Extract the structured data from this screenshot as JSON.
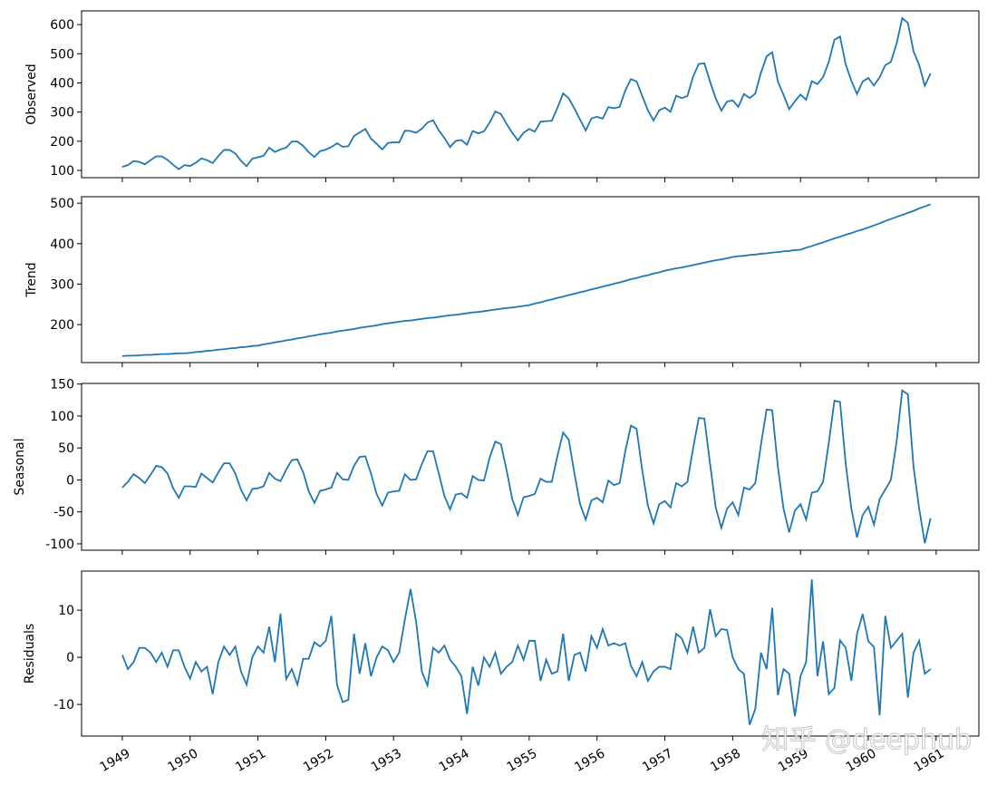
{
  "chart_data": {
    "type": "line",
    "color": "#1f77b4",
    "x": [
      1949,
      1949.083,
      1949.167,
      1949.25,
      1949.333,
      1949.417,
      1949.5,
      1949.583,
      1949.667,
      1949.75,
      1949.833,
      1949.917,
      1950,
      1950.083,
      1950.167,
      1950.25,
      1950.333,
      1950.417,
      1950.5,
      1950.583,
      1950.667,
      1950.75,
      1950.833,
      1950.917,
      1951,
      1951.083,
      1951.167,
      1951.25,
      1951.333,
      1951.417,
      1951.5,
      1951.583,
      1951.667,
      1951.75,
      1951.833,
      1951.917,
      1952,
      1952.083,
      1952.167,
      1952.25,
      1952.333,
      1952.417,
      1952.5,
      1952.583,
      1952.667,
      1952.75,
      1952.833,
      1952.917,
      1953,
      1953.083,
      1953.167,
      1953.25,
      1953.333,
      1953.417,
      1953.5,
      1953.583,
      1953.667,
      1953.75,
      1953.833,
      1953.917,
      1954,
      1954.083,
      1954.167,
      1954.25,
      1954.333,
      1954.417,
      1954.5,
      1954.583,
      1954.667,
      1954.75,
      1954.833,
      1954.917,
      1955,
      1955.083,
      1955.167,
      1955.25,
      1955.333,
      1955.417,
      1955.5,
      1955.583,
      1955.667,
      1955.75,
      1955.833,
      1955.917,
      1956,
      1956.083,
      1956.167,
      1956.25,
      1956.333,
      1956.417,
      1956.5,
      1956.583,
      1956.667,
      1956.75,
      1956.833,
      1956.917,
      1957,
      1957.083,
      1957.167,
      1957.25,
      1957.333,
      1957.417,
      1957.5,
      1957.583,
      1957.667,
      1957.75,
      1957.833,
      1957.917,
      1958,
      1958.083,
      1958.167,
      1958.25,
      1958.333,
      1958.417,
      1958.5,
      1958.583,
      1958.667,
      1958.75,
      1958.833,
      1958.917,
      1959,
      1959.083,
      1959.167,
      1959.25,
      1959.333,
      1959.417,
      1959.5,
      1959.583,
      1959.667,
      1959.75,
      1959.833,
      1959.917,
      1960,
      1960.083,
      1960.167,
      1960.25,
      1960.333,
      1960.417,
      1960.5,
      1960.583,
      1960.667,
      1960.75,
      1960.833,
      1960.917
    ],
    "xlim": [
      1948.4,
      1961.63
    ],
    "xticks": [
      1949,
      1950,
      1951,
      1952,
      1953,
      1954,
      1955,
      1956,
      1957,
      1958,
      1959,
      1960,
      1961
    ],
    "panels": [
      {
        "ylabel": "Observed",
        "ylim": [
          75,
          647
        ],
        "yticks": [
          100,
          200,
          300,
          400,
          500,
          600
        ],
        "values": [
          112,
          118,
          132,
          129,
          121,
          135,
          148,
          148,
          136,
          119,
          104,
          118,
          115,
          126,
          141,
          135,
          125,
          149,
          170,
          170,
          158,
          133,
          114,
          140,
          145,
          150,
          178,
          163,
          172,
          178,
          199,
          199,
          184,
          162,
          146,
          166,
          171,
          180,
          193,
          181,
          183,
          218,
          230,
          242,
          209,
          191,
          172,
          194,
          196,
          196,
          236,
          235,
          229,
          243,
          264,
          272,
          237,
          211,
          180,
          201,
          204,
          188,
          235,
          227,
          234,
          264,
          302,
          293,
          259,
          229,
          203,
          229,
          242,
          233,
          267,
          269,
          270,
          315,
          364,
          347,
          312,
          274,
          237,
          278,
          284,
          277,
          317,
          313,
          318,
          374,
          413,
          405,
          355,
          306,
          271,
          306,
          315,
          301,
          356,
          348,
          355,
          422,
          465,
          467,
          404,
          347,
          305,
          336,
          340,
          318,
          362,
          348,
          363,
          435,
          491,
          505,
          404,
          359,
          310,
          337,
          360,
          342,
          406,
          396,
          420,
          472,
          548,
          559,
          463,
          407,
          362,
          405,
          417,
          391,
          419,
          461,
          472,
          535,
          622,
          606,
          508,
          461,
          390,
          432
        ]
      },
      {
        "ylabel": "Trend",
        "ylim": [
          106,
          516
        ],
        "yticks": [
          200,
          300,
          400,
          500
        ],
        "values": [
          122,
          123,
          123,
          124,
          125,
          125,
          126,
          127,
          127,
          128,
          129,
          129,
          130,
          132,
          133,
          135,
          136,
          138,
          139,
          141,
          142,
          144,
          145,
          147,
          148,
          151,
          153,
          156,
          158,
          161,
          163,
          166,
          168,
          171,
          173,
          176,
          178,
          180,
          183,
          185,
          187,
          189,
          192,
          194,
          196,
          198,
          201,
          203,
          205,
          207,
          209,
          210,
          212,
          214,
          216,
          217,
          219,
          221,
          223,
          224,
          226,
          228,
          230,
          231,
          233,
          235,
          237,
          239,
          241,
          242,
          244,
          246,
          248,
          252,
          255,
          259,
          262,
          266,
          269,
          273,
          276,
          280,
          283,
          287,
          290,
          294,
          297,
          301,
          304,
          308,
          312,
          315,
          319,
          322,
          326,
          329,
          333,
          336,
          339,
          341,
          344,
          347,
          350,
          353,
          356,
          359,
          361,
          364,
          367,
          369,
          370,
          372,
          373,
          375,
          376,
          378,
          379,
          381,
          382,
          384,
          385,
          390,
          394,
          399,
          403,
          408,
          413,
          417,
          422,
          426,
          431,
          435,
          440,
          445,
          450,
          456,
          461,
          466,
          471,
          476,
          481,
          487,
          492,
          497
        ]
      },
      {
        "ylabel": "Seasonal",
        "ylim": [
          -110,
          151
        ],
        "yticks": [
          -100,
          -50,
          0,
          50,
          100,
          150
        ],
        "values": [
          -12,
          -3,
          9,
          3,
          -5,
          8,
          22,
          20,
          10,
          -13,
          -28,
          -10,
          -10,
          -11,
          10,
          3,
          -4,
          12,
          26,
          26,
          10,
          -15,
          -32,
          -14,
          -13,
          -10,
          11,
          2,
          -2,
          16,
          31,
          32,
          12,
          -18,
          -36,
          -17,
          -15,
          -12,
          11,
          1,
          0,
          22,
          36,
          37,
          10,
          -22,
          -40,
          -20,
          -18,
          -17,
          9,
          0,
          1,
          25,
          45,
          45,
          10,
          -25,
          -46,
          -23,
          -21,
          -28,
          6,
          0,
          -1,
          35,
          60,
          56,
          15,
          -30,
          -55,
          -27,
          -25,
          -22,
          2,
          -3,
          -3,
          38,
          74,
          63,
          10,
          -38,
          -62,
          -32,
          -28,
          -35,
          -1,
          -8,
          -5,
          45,
          85,
          80,
          15,
          -40,
          -68,
          -38,
          -33,
          -43,
          -5,
          -10,
          -3,
          50,
          97,
          96,
          25,
          -43,
          -75,
          -45,
          -35,
          -55,
          -12,
          -15,
          -5,
          55,
          110,
          109,
          20,
          -45,
          -82,
          -48,
          -38,
          -62,
          -20,
          -18,
          -3,
          58,
          124,
          122,
          25,
          -45,
          -90,
          -55,
          -42,
          -70,
          -30,
          -15,
          0,
          60,
          140,
          134,
          20,
          -45,
          -99,
          -60
        ]
      },
      {
        "ylabel": "Residuals",
        "ylim": [
          -16.7,
          18.3
        ],
        "yticks": [
          -10,
          0,
          10
        ],
        "values": [
          0.5,
          -2.5,
          -1,
          2,
          2,
          1,
          -1,
          1,
          -2,
          1.5,
          1.5,
          -2,
          -4.5,
          -1,
          -3,
          -2,
          -7.8,
          -1,
          2.3,
          0.5,
          2.3,
          -3,
          -5.8,
          0,
          2.3,
          1,
          6.5,
          -1,
          9.3,
          -4.6,
          -2.5,
          -5.8,
          -0.3,
          -0.3,
          3.2,
          2.3,
          3.5,
          8.8,
          -5.9,
          -9.5,
          -9,
          5,
          -3.5,
          3,
          -4,
          0,
          2.3,
          1.5,
          -1,
          1,
          8,
          14.5,
          7.5,
          -3,
          -6,
          2,
          1,
          2.5,
          -0.5,
          -2,
          -4,
          -12,
          -2,
          -6,
          0,
          -2,
          1,
          -3.5,
          -2,
          -1,
          2.5,
          -0.5,
          3.5,
          3.5,
          -5,
          -0.5,
          -3.5,
          -3,
          5,
          -5,
          0.5,
          1,
          -3,
          4.5,
          2,
          6,
          2.5,
          3,
          2.5,
          3,
          -1.8,
          -4,
          -1,
          -5,
          -3,
          -2,
          -2,
          -2.5,
          5,
          4,
          1,
          6.5,
          1,
          2,
          10.2,
          4.5,
          6,
          5.8,
          0,
          -2.5,
          -3.5,
          -14.3,
          -11,
          1,
          -2.5,
          10.5,
          -8,
          -2.5,
          -3.5,
          -12.5,
          -4,
          -1,
          16.5,
          -4,
          3.4,
          -7.8,
          -6.5,
          3.6,
          2,
          -5,
          5,
          9.2,
          3.4,
          2.2,
          -12.3,
          8.8,
          2,
          3.5,
          5,
          -8.5,
          1,
          3.5,
          -3.5,
          -2.5
        ]
      }
    ],
    "watermark": "知乎 @deephub"
  }
}
